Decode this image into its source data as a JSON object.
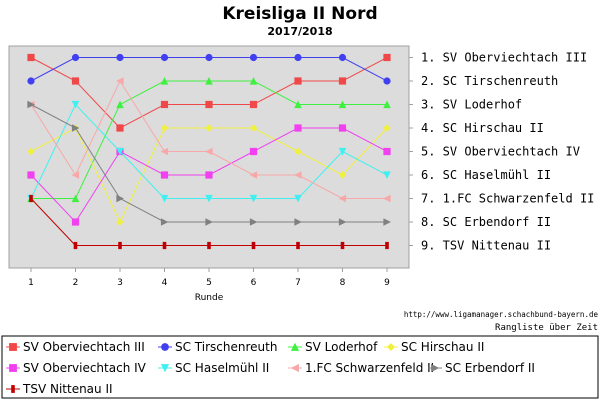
{
  "chart_data": {
    "type": "line",
    "title": "Kreisliga II Nord",
    "subtitle": "2017/2018",
    "xlabel": "Runde",
    "ylabel": "",
    "x": [
      1,
      2,
      3,
      4,
      5,
      6,
      7,
      8,
      9
    ],
    "ylim": [
      0.5,
      10
    ],
    "y_inverted": true,
    "grid": false,
    "legend_position": "bottom",
    "rank_labels": [
      "1. SV Oberviechtach III",
      "2. SC Tirschenreuth",
      "3. SV Loderhof",
      "4. SC Hirschau II",
      "5. SV Oberviechtach IV",
      "6. SC Haselmühl II",
      "7. 1.FC Schwarzenfeld II",
      "8. SC Erbendorf II",
      "9. TSV Nittenau II"
    ],
    "series": [
      {
        "name": "SV Oberviechtach III",
        "color": "#f04848",
        "marker": "square",
        "values": [
          1,
          2,
          4,
          3,
          3,
          3,
          2,
          2,
          1
        ]
      },
      {
        "name": "SC Tirschenreuth",
        "color": "#4040f0",
        "marker": "circle",
        "values": [
          2,
          1,
          1,
          1,
          1,
          1,
          1,
          1,
          2
        ]
      },
      {
        "name": "SV Loderhof",
        "color": "#40f040",
        "marker": "triangle",
        "values": [
          7,
          7,
          3,
          2,
          2,
          2,
          3,
          3,
          3
        ]
      },
      {
        "name": "SC Hirschau II",
        "color": "#f0f040",
        "marker": "diamond",
        "values": [
          5,
          4,
          8,
          4,
          4,
          4,
          5,
          6,
          4
        ]
      },
      {
        "name": "SV Oberviechtach IV",
        "color": "#f040f0",
        "marker": "square",
        "values": [
          6,
          8,
          5,
          6,
          6,
          5,
          4,
          4,
          5
        ]
      },
      {
        "name": "SC Haselmühl II",
        "color": "#40f0f0",
        "marker": "tri-down",
        "values": [
          7,
          3,
          5,
          7,
          7,
          7,
          7,
          5,
          6
        ]
      },
      {
        "name": "1.FC Schwarzenfeld II",
        "color": "#f8a8a8",
        "marker": "tri-left",
        "values": [
          3,
          6,
          2,
          5,
          5,
          6,
          6,
          7,
          7
        ]
      },
      {
        "name": "SC Erbendorf II",
        "color": "#808080",
        "marker": "tri-right",
        "values": [
          3,
          4,
          7,
          8,
          8,
          8,
          8,
          8,
          8
        ]
      },
      {
        "name": "TSV Nittenau II",
        "color": "#c00000",
        "marker": "bar",
        "values": [
          7,
          9,
          9,
          9,
          9,
          9,
          9,
          9,
          9
        ]
      }
    ],
    "source_url": "http://www.ligamanager.schachbund-bayern.de",
    "note": "Rangliste über Zeit"
  }
}
